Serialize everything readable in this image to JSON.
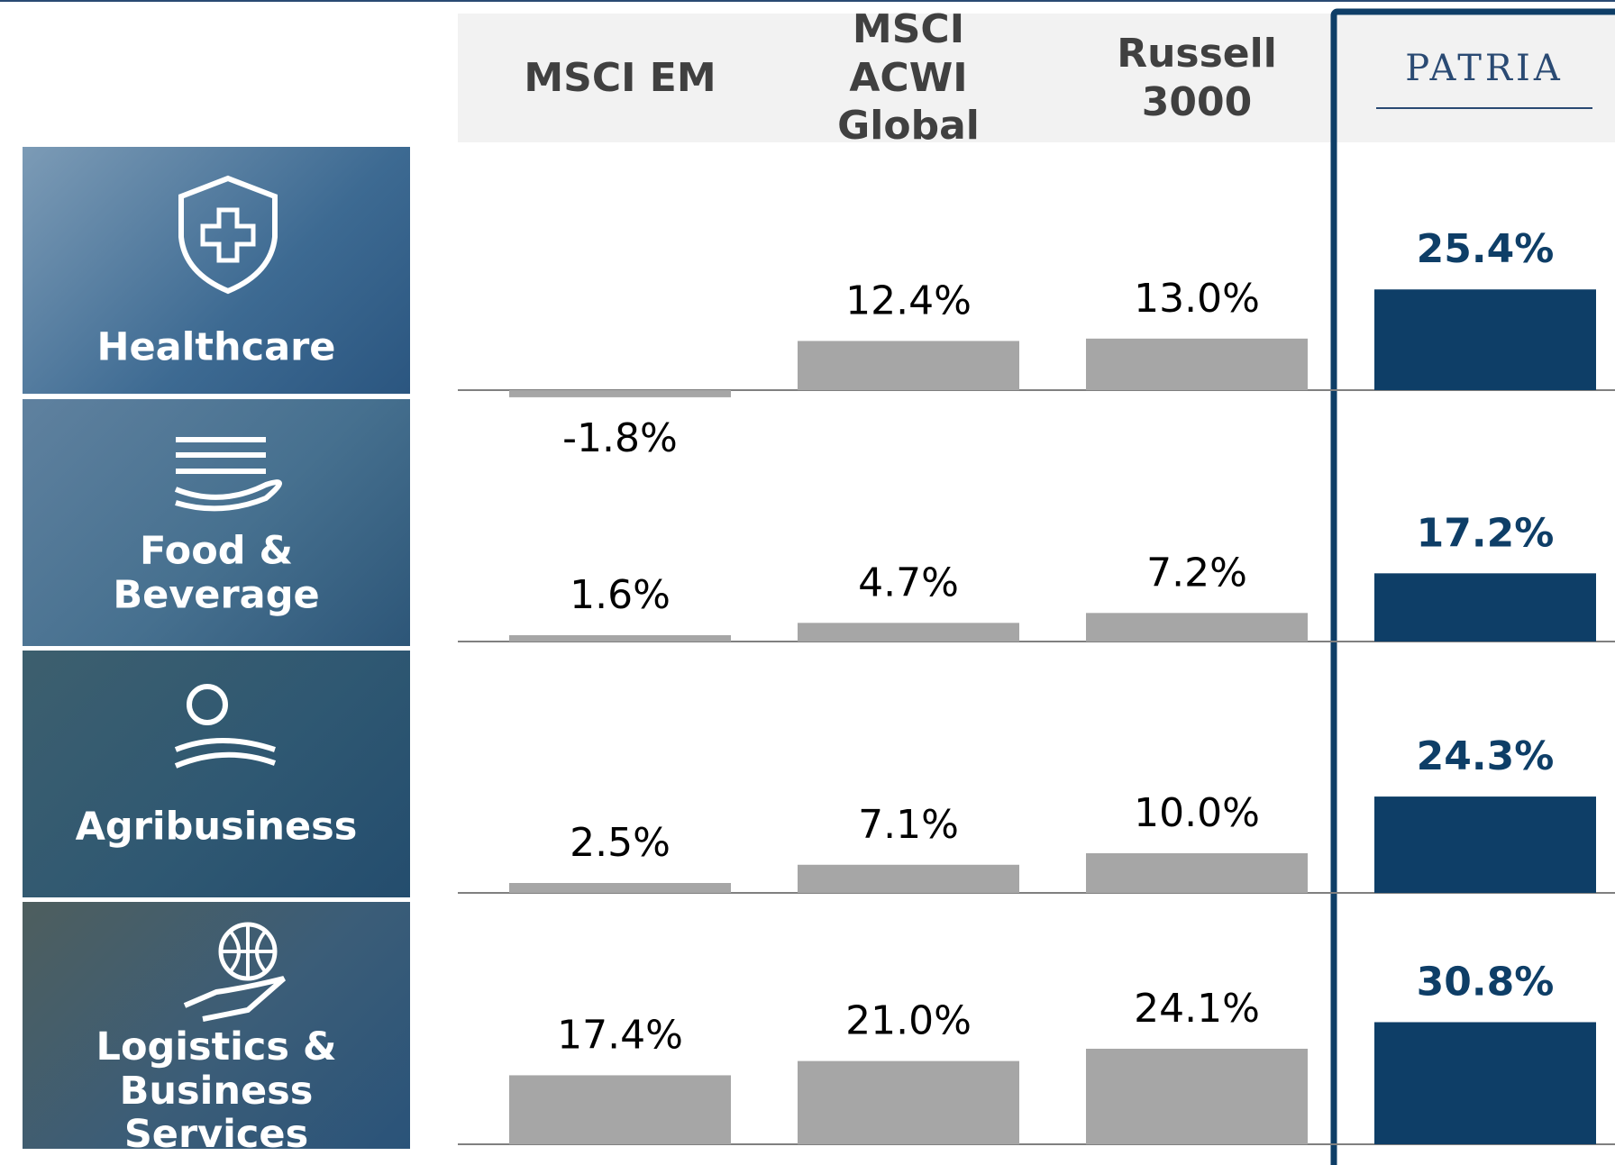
{
  "chart_data": {
    "type": "bar",
    "categories": [
      "Healthcare",
      "Food & Beverage",
      "Agribusiness",
      "Logistics & Business Services"
    ],
    "series": [
      {
        "name": "MSCI EM",
        "color": "#a6a6a6",
        "values": [
          -1.8,
          1.6,
          2.5,
          17.4
        ],
        "value_labels": [
          "-1.8%",
          "1.6%",
          "2.5%",
          "17.4%"
        ]
      },
      {
        "name": "MSCI ACWI Global",
        "color": "#a6a6a6",
        "values": [
          12.4,
          4.7,
          7.1,
          21.0
        ],
        "value_labels": [
          "12.4%",
          "4.7%",
          "7.1%",
          "21.0%"
        ]
      },
      {
        "name": "Russell 3000",
        "color": "#a6a6a6",
        "values": [
          13.0,
          7.2,
          10.0,
          24.1
        ],
        "value_labels": [
          "13.0%",
          "7.2%",
          "10.0%",
          "24.1%"
        ]
      },
      {
        "name": "PATRIA",
        "color": "#0e3e67",
        "values": [
          25.4,
          17.2,
          24.3,
          30.8
        ],
        "value_labels": [
          "25.4%",
          "17.2%",
          "24.3%",
          "30.8%"
        ]
      }
    ]
  }
}
